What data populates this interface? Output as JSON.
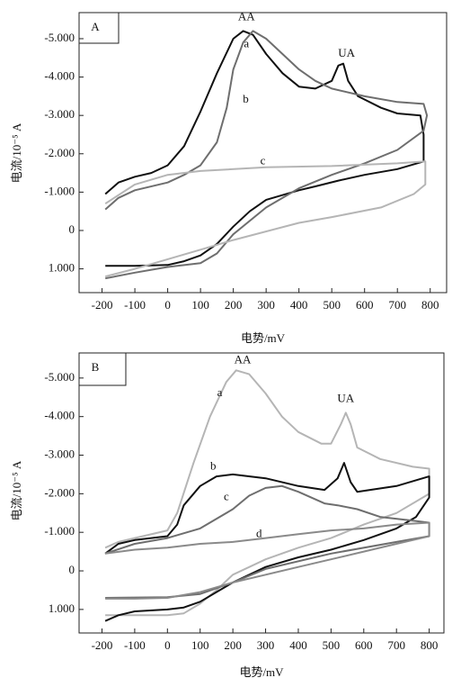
{
  "chart_data": [
    {
      "type": "line",
      "panel": "A",
      "x_label": "电势/mV",
      "y_label": "电流/10⁻⁵ A",
      "annotations": [
        "AA",
        "UA"
      ],
      "xlim": [
        -270,
        850
      ],
      "ylim": [
        1.62,
        -5.68
      ],
      "xticks": [
        -200,
        -100,
        0,
        100,
        200,
        300,
        400,
        500,
        600,
        700,
        800
      ],
      "yticks": [
        {
          "value": -5,
          "label": "-5.000"
        },
        {
          "value": -4,
          "label": "-4.000"
        },
        {
          "value": -3,
          "label": "-3.000"
        },
        {
          "value": -2,
          "label": "-2.000"
        },
        {
          "value": -1,
          "label": "-1.000"
        },
        0,
        {
          "value": 1,
          "label": "1.000"
        }
      ],
      "series": [
        {
          "name": "a",
          "color": "#111111",
          "x": [
            -190,
            -150,
            -100,
            -50,
            0,
            50,
            100,
            150,
            200,
            230,
            260,
            300,
            350,
            400,
            450,
            500,
            520,
            535,
            550,
            580,
            650,
            700,
            770,
            780,
            780,
            700,
            600,
            520,
            450,
            400,
            300,
            250,
            200,
            150,
            100,
            50,
            0,
            -100,
            -190
          ],
          "values": [
            -0.95,
            -1.25,
            -1.4,
            -1.5,
            -1.7,
            -2.2,
            -3.1,
            -4.1,
            -5.0,
            -5.2,
            -5.1,
            -4.6,
            -4.1,
            -3.75,
            -3.7,
            -3.9,
            -4.3,
            -4.35,
            -3.9,
            -3.5,
            -3.2,
            -3.05,
            -3.0,
            -2.5,
            -1.8,
            -1.6,
            -1.45,
            -1.3,
            -1.15,
            -1.05,
            -0.8,
            -0.5,
            -0.1,
            0.35,
            0.65,
            0.8,
            0.9,
            0.92,
            0.92
          ]
        },
        {
          "name": "b",
          "color": "#6e6e6e",
          "x": [
            -190,
            -150,
            -100,
            0,
            50,
            100,
            150,
            180,
            200,
            230,
            260,
            300,
            350,
            400,
            450,
            500,
            600,
            700,
            780,
            790,
            780,
            700,
            600,
            500,
            400,
            300,
            200,
            150,
            100,
            0,
            -100,
            -190
          ],
          "values": [
            -0.55,
            -0.85,
            -1.05,
            -1.25,
            -1.45,
            -1.7,
            -2.3,
            -3.2,
            -4.2,
            -4.9,
            -5.2,
            -5.0,
            -4.6,
            -4.2,
            -3.9,
            -3.7,
            -3.5,
            -3.35,
            -3.3,
            -3.0,
            -2.6,
            -2.1,
            -1.75,
            -1.45,
            -1.1,
            -0.6,
            0.1,
            0.6,
            0.85,
            0.95,
            1.1,
            1.25
          ]
        },
        {
          "name": "c",
          "color": "#b5b5b5",
          "x": [
            -190,
            -100,
            0,
            100,
            300,
            500,
            700,
            785,
            785,
            750,
            650,
            500,
            400,
            200,
            100,
            0,
            -100,
            -190
          ],
          "values": [
            -0.7,
            -1.2,
            -1.45,
            -1.55,
            -1.65,
            -1.68,
            -1.75,
            -1.8,
            -1.2,
            -0.95,
            -0.6,
            -0.35,
            -0.2,
            0.25,
            0.5,
            0.75,
            1.0,
            1.2
          ]
        }
      ]
    },
    {
      "type": "line",
      "panel": "B",
      "x_label": "电势/mV",
      "y_label": "电流/10⁻⁵ A",
      "annotations": [
        "AA",
        "UA"
      ],
      "xlim": [
        -270,
        845
      ],
      "ylim": [
        1.61,
        -5.65
      ],
      "xticks": [
        -200,
        -100,
        0,
        100,
        200,
        300,
        400,
        500,
        600,
        700,
        800
      ],
      "yticks": [
        {
          "value": -5,
          "label": "-5.000"
        },
        {
          "value": -4,
          "label": "-4.000"
        },
        {
          "value": -3,
          "label": "-3.000"
        },
        {
          "value": -2,
          "label": "-2.000"
        },
        {
          "value": -1,
          "label": "-1.000"
        },
        0,
        {
          "value": 1,
          "label": "1.000"
        }
      ],
      "series": [
        {
          "name": "a",
          "color": "#b5b5b5",
          "x": [
            -190,
            -150,
            -100,
            0,
            30,
            80,
            130,
            180,
            210,
            250,
            300,
            350,
            400,
            470,
            500,
            530,
            545,
            560,
            580,
            650,
            750,
            800,
            800,
            700,
            600,
            500,
            400,
            300,
            200,
            150,
            100,
            50,
            0,
            -100,
            -190
          ],
          "values": [
            -0.6,
            -0.75,
            -0.85,
            -1.05,
            -1.5,
            -2.8,
            -4.0,
            -4.9,
            -5.2,
            -5.1,
            -4.6,
            -4.0,
            -3.6,
            -3.3,
            -3.3,
            -3.8,
            -4.1,
            -3.8,
            -3.2,
            -2.9,
            -2.7,
            -2.65,
            -2.0,
            -1.5,
            -1.2,
            -0.85,
            -0.6,
            -0.3,
            0.1,
            0.5,
            0.85,
            1.1,
            1.15,
            1.15,
            1.15
          ]
        },
        {
          "name": "b",
          "color": "#111111",
          "x": [
            -190,
            -150,
            -100,
            0,
            30,
            50,
            100,
            150,
            200,
            300,
            400,
            480,
            520,
            540,
            560,
            580,
            700,
            800,
            800,
            760,
            700,
            600,
            500,
            400,
            300,
            200,
            100,
            50,
            0,
            -100,
            -150,
            -190
          ],
          "values": [
            -0.45,
            -0.7,
            -0.8,
            -0.9,
            -1.2,
            -1.7,
            -2.2,
            -2.45,
            -2.5,
            -2.4,
            -2.2,
            -2.1,
            -2.4,
            -2.8,
            -2.3,
            -2.05,
            -2.2,
            -2.45,
            -1.9,
            -1.4,
            -1.1,
            -0.8,
            -0.55,
            -0.35,
            -0.1,
            0.3,
            0.8,
            0.95,
            1.0,
            1.05,
            1.15,
            1.3
          ]
        },
        {
          "name": "c",
          "color": "#6e6e6e",
          "x": [
            -190,
            -100,
            0,
            100,
            200,
            250,
            300,
            350,
            400,
            480,
            520,
            580,
            650,
            750,
            800,
            800,
            700,
            500,
            300,
            200,
            100,
            0,
            -190
          ],
          "values": [
            -0.45,
            -0.7,
            -0.85,
            -1.1,
            -1.6,
            -1.95,
            -2.15,
            -2.2,
            -2.05,
            -1.75,
            -1.7,
            -1.6,
            -1.4,
            -1.3,
            -1.25,
            -0.9,
            -0.75,
            -0.45,
            -0.05,
            0.3,
            0.6,
            0.68,
            0.7
          ]
        },
        {
          "name": "d",
          "color": "#8a8a8a",
          "x": [
            -190,
            -100,
            0,
            100,
            200,
            300,
            400,
            500,
            600,
            700,
            800,
            800,
            700,
            600,
            500,
            400,
            300,
            200,
            100,
            0,
            -100,
            -190
          ],
          "values": [
            -0.45,
            -0.55,
            -0.6,
            -0.7,
            -0.75,
            -0.85,
            -0.95,
            -1.05,
            -1.1,
            -1.2,
            -1.25,
            -0.9,
            -0.7,
            -0.5,
            -0.3,
            -0.1,
            0.1,
            0.3,
            0.55,
            0.7,
            0.72,
            0.72
          ]
        }
      ]
    }
  ]
}
